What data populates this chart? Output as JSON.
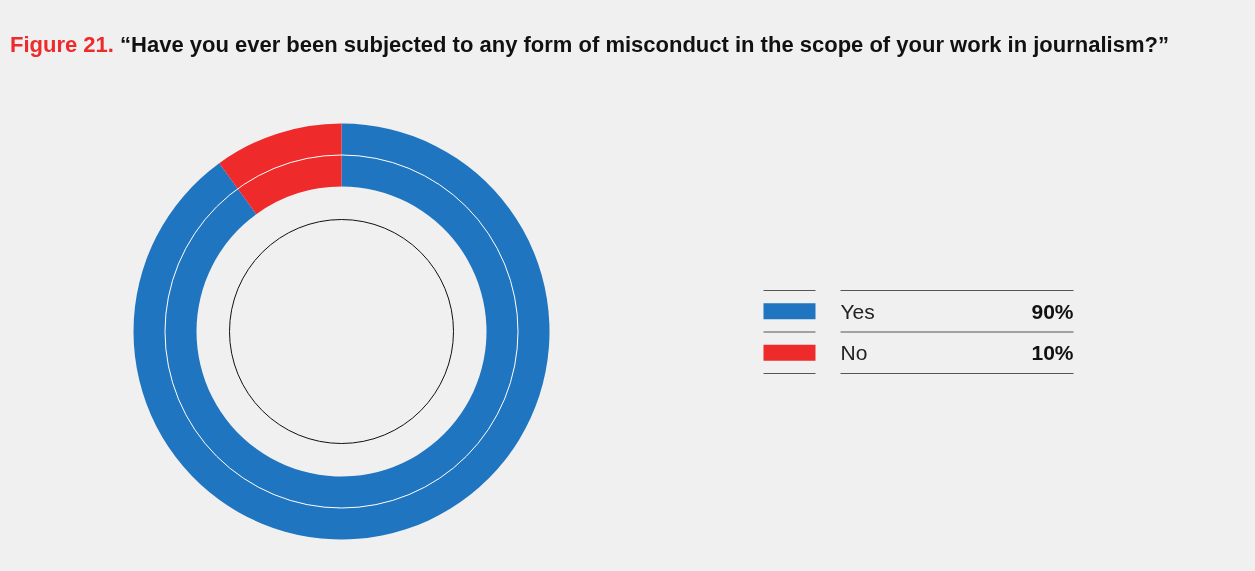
{
  "chart_data": {
    "type": "donut",
    "title": "Figure 21. “Have you ever been subjected to any form of misconduct in the scope of your work in journalism?”",
    "categories": [
      "Yes",
      "No"
    ],
    "values": [
      90,
      10
    ],
    "colors": [
      "#1f75bf",
      "#ee2a2a"
    ],
    "value_labels": [
      "90%",
      "10%"
    ],
    "legend": "right"
  }
}
